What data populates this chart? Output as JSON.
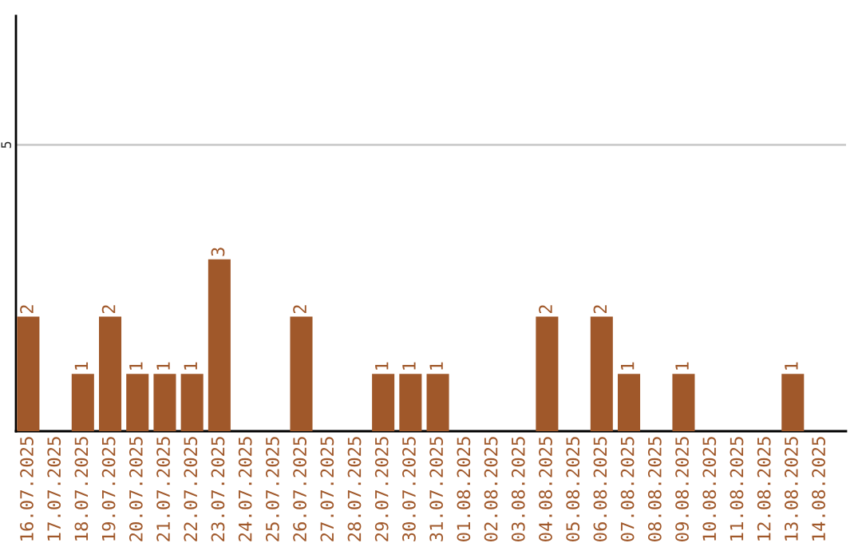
{
  "chart_data": {
    "type": "bar",
    "categories": [
      "16.07.2025",
      "17.07.2025",
      "18.07.2025",
      "19.07.2025",
      "20.07.2025",
      "21.07.2025",
      "22.07.2025",
      "23.07.2025",
      "24.07.2025",
      "25.07.2025",
      "26.07.2025",
      "27.07.2025",
      "28.07.2025",
      "29.07.2025",
      "30.07.2025",
      "31.07.2025",
      "01.08.2025",
      "02.08.2025",
      "03.08.2025",
      "04.08.2025",
      "05.08.2025",
      "06.08.2025",
      "07.08.2025",
      "08.08.2025",
      "09.08.2025",
      "10.08.2025",
      "11.08.2025",
      "12.08.2025",
      "13.08.2025",
      "14.08.2025"
    ],
    "values": [
      2,
      null,
      1,
      2,
      1,
      1,
      1,
      3,
      null,
      null,
      2,
      null,
      null,
      1,
      1,
      1,
      null,
      null,
      null,
      2,
      null,
      2,
      1,
      null,
      1,
      null,
      null,
      null,
      1,
      null
    ],
    "value_labels": [
      "2",
      null,
      "1",
      "2",
      "1",
      "1",
      "1",
      "3",
      null,
      null,
      "2",
      null,
      null,
      "1",
      "1",
      "1",
      null,
      null,
      null,
      "2",
      null,
      "2",
      "1",
      null,
      "1",
      null,
      null,
      null,
      "1",
      null
    ],
    "color": "#a0582a",
    "ylim": [
      0,
      7.25
    ],
    "yticks": [
      5
    ],
    "grid": "y"
  }
}
